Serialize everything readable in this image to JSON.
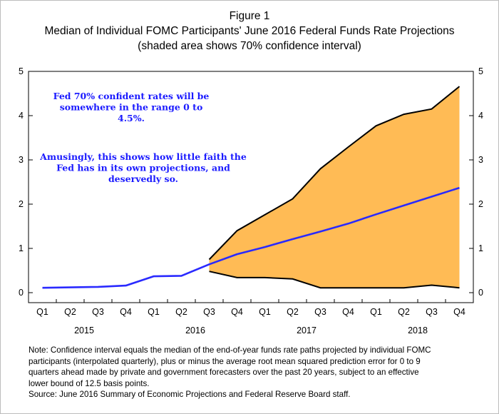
{
  "chart_data": {
    "type": "line",
    "title": "Figure 1",
    "subtitle": "Median of Individual FOMC Participants' June 2016 Federal Funds Rate Projections",
    "subtitle2": "(shaded area shows 70% confidence interval)",
    "categories": [
      "Q1",
      "Q2",
      "Q3",
      "Q4",
      "Q1",
      "Q2",
      "Q3",
      "Q4",
      "Q1",
      "Q2",
      "Q3",
      "Q4",
      "Q1",
      "Q2",
      "Q3",
      "Q4"
    ],
    "years": [
      {
        "label": "2015",
        "start": 0,
        "end": 3
      },
      {
        "label": "2016",
        "start": 4,
        "end": 7
      },
      {
        "label": "2017",
        "start": 8,
        "end": 11
      },
      {
        "label": "2018",
        "start": 12,
        "end": 15
      }
    ],
    "ylim": [
      0,
      5
    ],
    "yticks": [
      0,
      1,
      2,
      3,
      4,
      5
    ],
    "ytick_labels": [
      "0",
      "1",
      "2",
      "3",
      "4",
      "5"
    ],
    "grid": false,
    "series": [
      {
        "values": [
          0.11,
          0.12,
          0.13,
          0.16,
          0.37,
          0.38,
          0.64,
          0.87,
          1.03,
          1.21,
          1.38,
          1.56,
          1.77,
          1.97,
          2.17,
          2.37
        ]
      }
    ],
    "band": {
      "start_index": 6,
      "upper": [
        0.75,
        1.4,
        1.76,
        2.12,
        2.8,
        3.29,
        3.77,
        4.03,
        4.15,
        4.66
      ],
      "lower": [
        0.48,
        0.34,
        0.34,
        0.31,
        0.11,
        0.11,
        0.11,
        0.11,
        0.17,
        0.11
      ]
    },
    "annotations": [
      [
        "Fed 70% confident rates will be",
        "somewhere in the range 0 to",
        "4.5%."
      ],
      [
        "Amusingly, this shows how little faith the",
        "Fed has in its own projections, and",
        "deservedly so."
      ]
    ],
    "colors": {
      "median_line": "#2a2aff",
      "band_fill": "#ffbb55",
      "band_edge": "#000000",
      "annotation_text": "#1a1aff"
    }
  },
  "notes": [
    "Note:  Confidence interval equals the median of the end-of-year funds rate paths projected by individual FOMC",
    "participants (interpolated quarterly), plus or minus the average root mean squared prediction error for 0 to 9",
    "quarters ahead made by private and government forecasters over the past 20 years, subject to an effective",
    "lower bound of 12.5 basis points.",
    "Source:  June 2016 Summary of Economic Projections and Federal Reserve Board staff."
  ]
}
